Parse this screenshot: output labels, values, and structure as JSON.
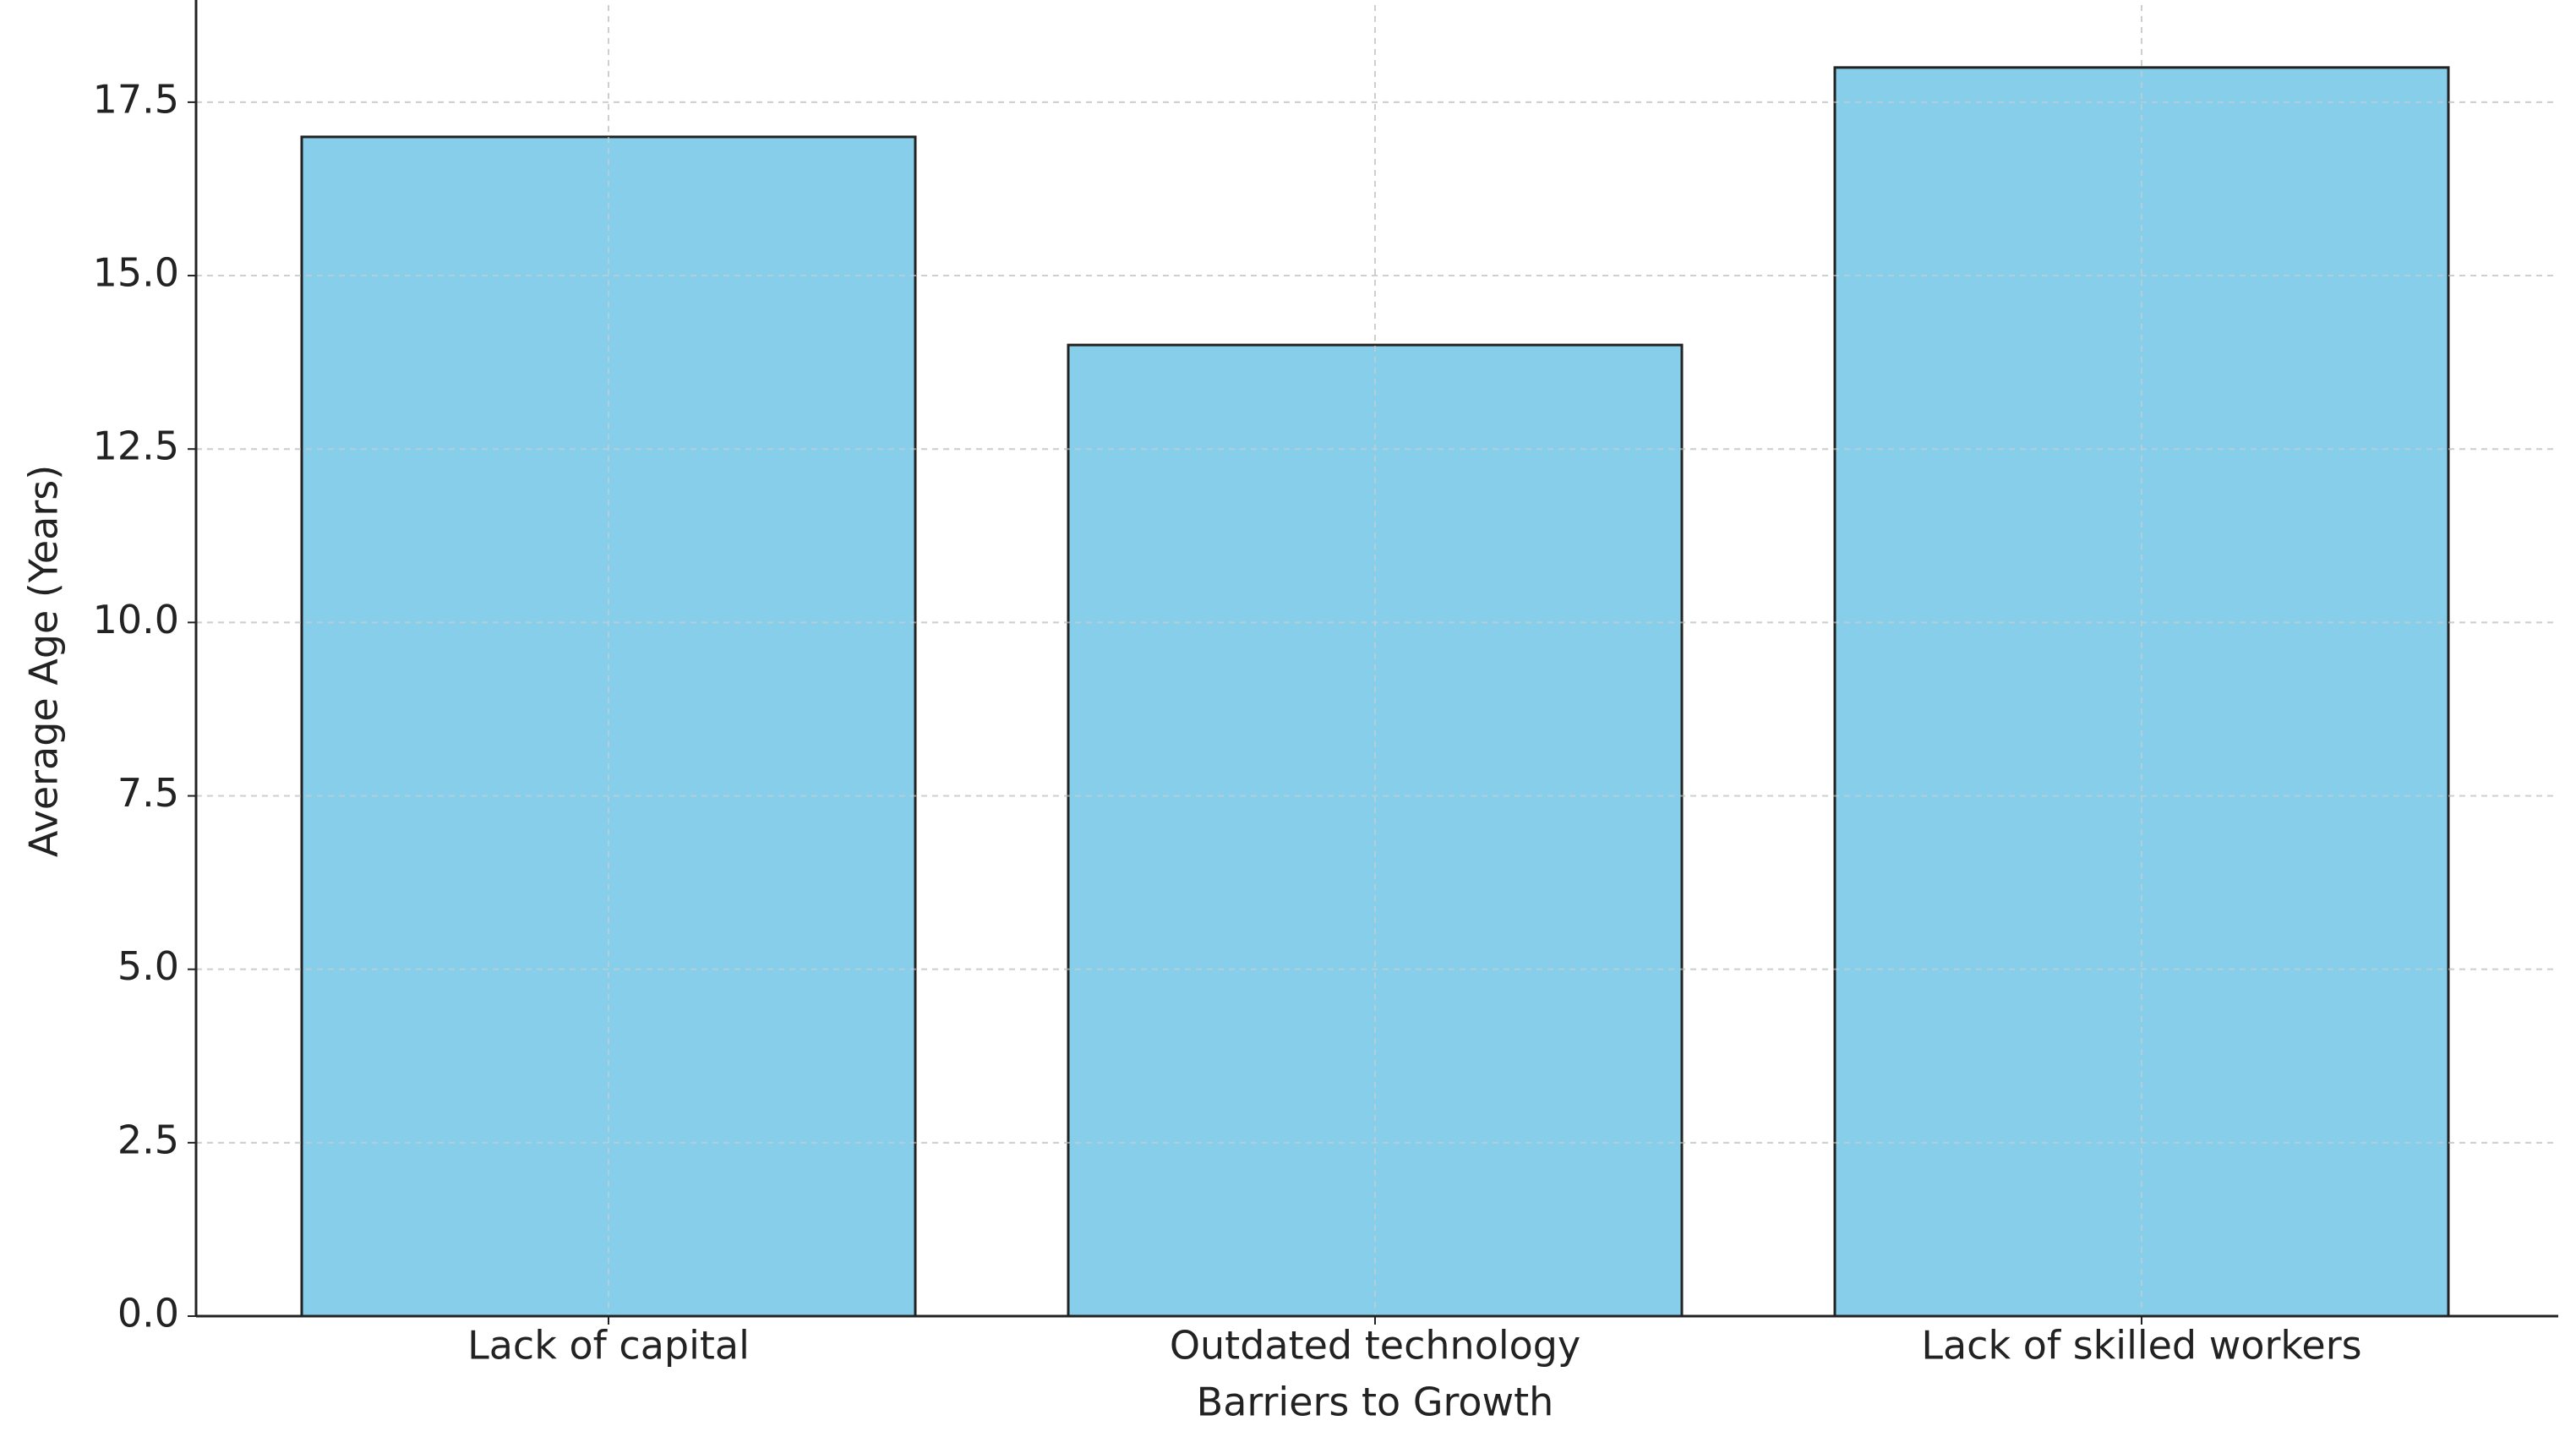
{
  "chart_data": {
    "type": "bar",
    "x_label": "Barriers to Growth",
    "y_label": "Average Age (Years)",
    "categories": [
      "Lack of capital",
      "Outdated technology",
      "Lack of skilled workers"
    ],
    "values": [
      17,
      14,
      18
    ],
    "color": "#87ceeb",
    "ylim": [
      0,
      18.9
    ],
    "yticks": [
      {
        "value": 0,
        "label": "0.0"
      },
      2.5,
      {
        "value": 5,
        "label": "5.0"
      },
      7.5,
      {
        "value": 10,
        "label": "10.0"
      },
      12.5,
      {
        "value": 15,
        "label": "15.0"
      },
      17.5
    ],
    "grid": true
  }
}
